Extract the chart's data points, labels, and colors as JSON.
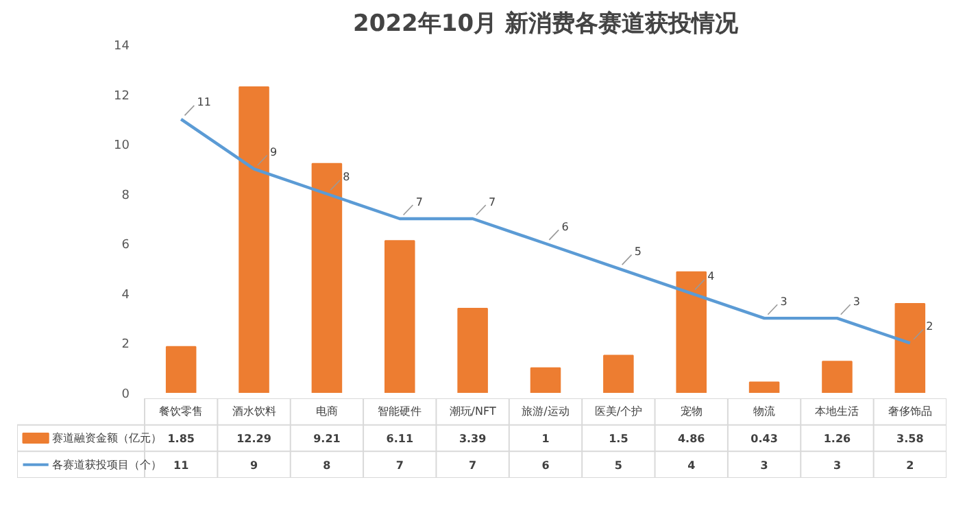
{
  "chart_data": {
    "type": "bar",
    "title": "2022年10月 新消费各赛道获投情况",
    "categories": [
      "餐饮零售",
      "酒水饮料",
      "电商",
      "智能硬件",
      "潮玩/NFT",
      "旅游/运动",
      "医美/个护",
      "宠物",
      "物流",
      "本地生活",
      "奢侈饰品"
    ],
    "series": [
      {
        "name": "赛道融资金额（亿元）",
        "color": "#ed7d31",
        "values": [
          1.85,
          12.29,
          9.21,
          6.11,
          3.39,
          1,
          1.5,
          4.86,
          0.43,
          1.26,
          3.58
        ]
      },
      {
        "name": "各赛道获投项目（个）",
        "type": "line",
        "color": "#5b9bd5",
        "values": [
          11,
          9,
          8,
          7,
          7,
          6,
          5,
          4,
          3,
          3,
          2
        ]
      }
    ],
    "annotations": [
      {
        "text": "11",
        "x": "餐饮零售",
        "y": 11
      },
      {
        "text": "9",
        "x": "酒水饮料",
        "y": 9
      },
      {
        "text": "8",
        "x": "电商",
        "y": 8
      },
      {
        "text": "7",
        "x": "智能硬件",
        "y": 7
      },
      {
        "text": "7",
        "x": "潮玩/NFT",
        "y": 7
      },
      {
        "text": "6",
        "x": "旅游/运动",
        "y": 6
      },
      {
        "text": "5",
        "x": "医美/个护",
        "y": 5
      },
      {
        "text": "4",
        "x": "宠物",
        "y": 4
      },
      {
        "text": "3",
        "x": "物流",
        "y": 3
      },
      {
        "text": "3",
        "x": "本地生活",
        "y": 3
      },
      {
        "text": "2",
        "x": "奢侈饰品",
        "y": 2
      }
    ],
    "ylim": [
      0,
      14
    ],
    "yticks": [
      0,
      2,
      4,
      6,
      8,
      10,
      12,
      14
    ],
    "grid": false,
    "data_labels": true,
    "legend": "bottom",
    "marker": "none"
  }
}
